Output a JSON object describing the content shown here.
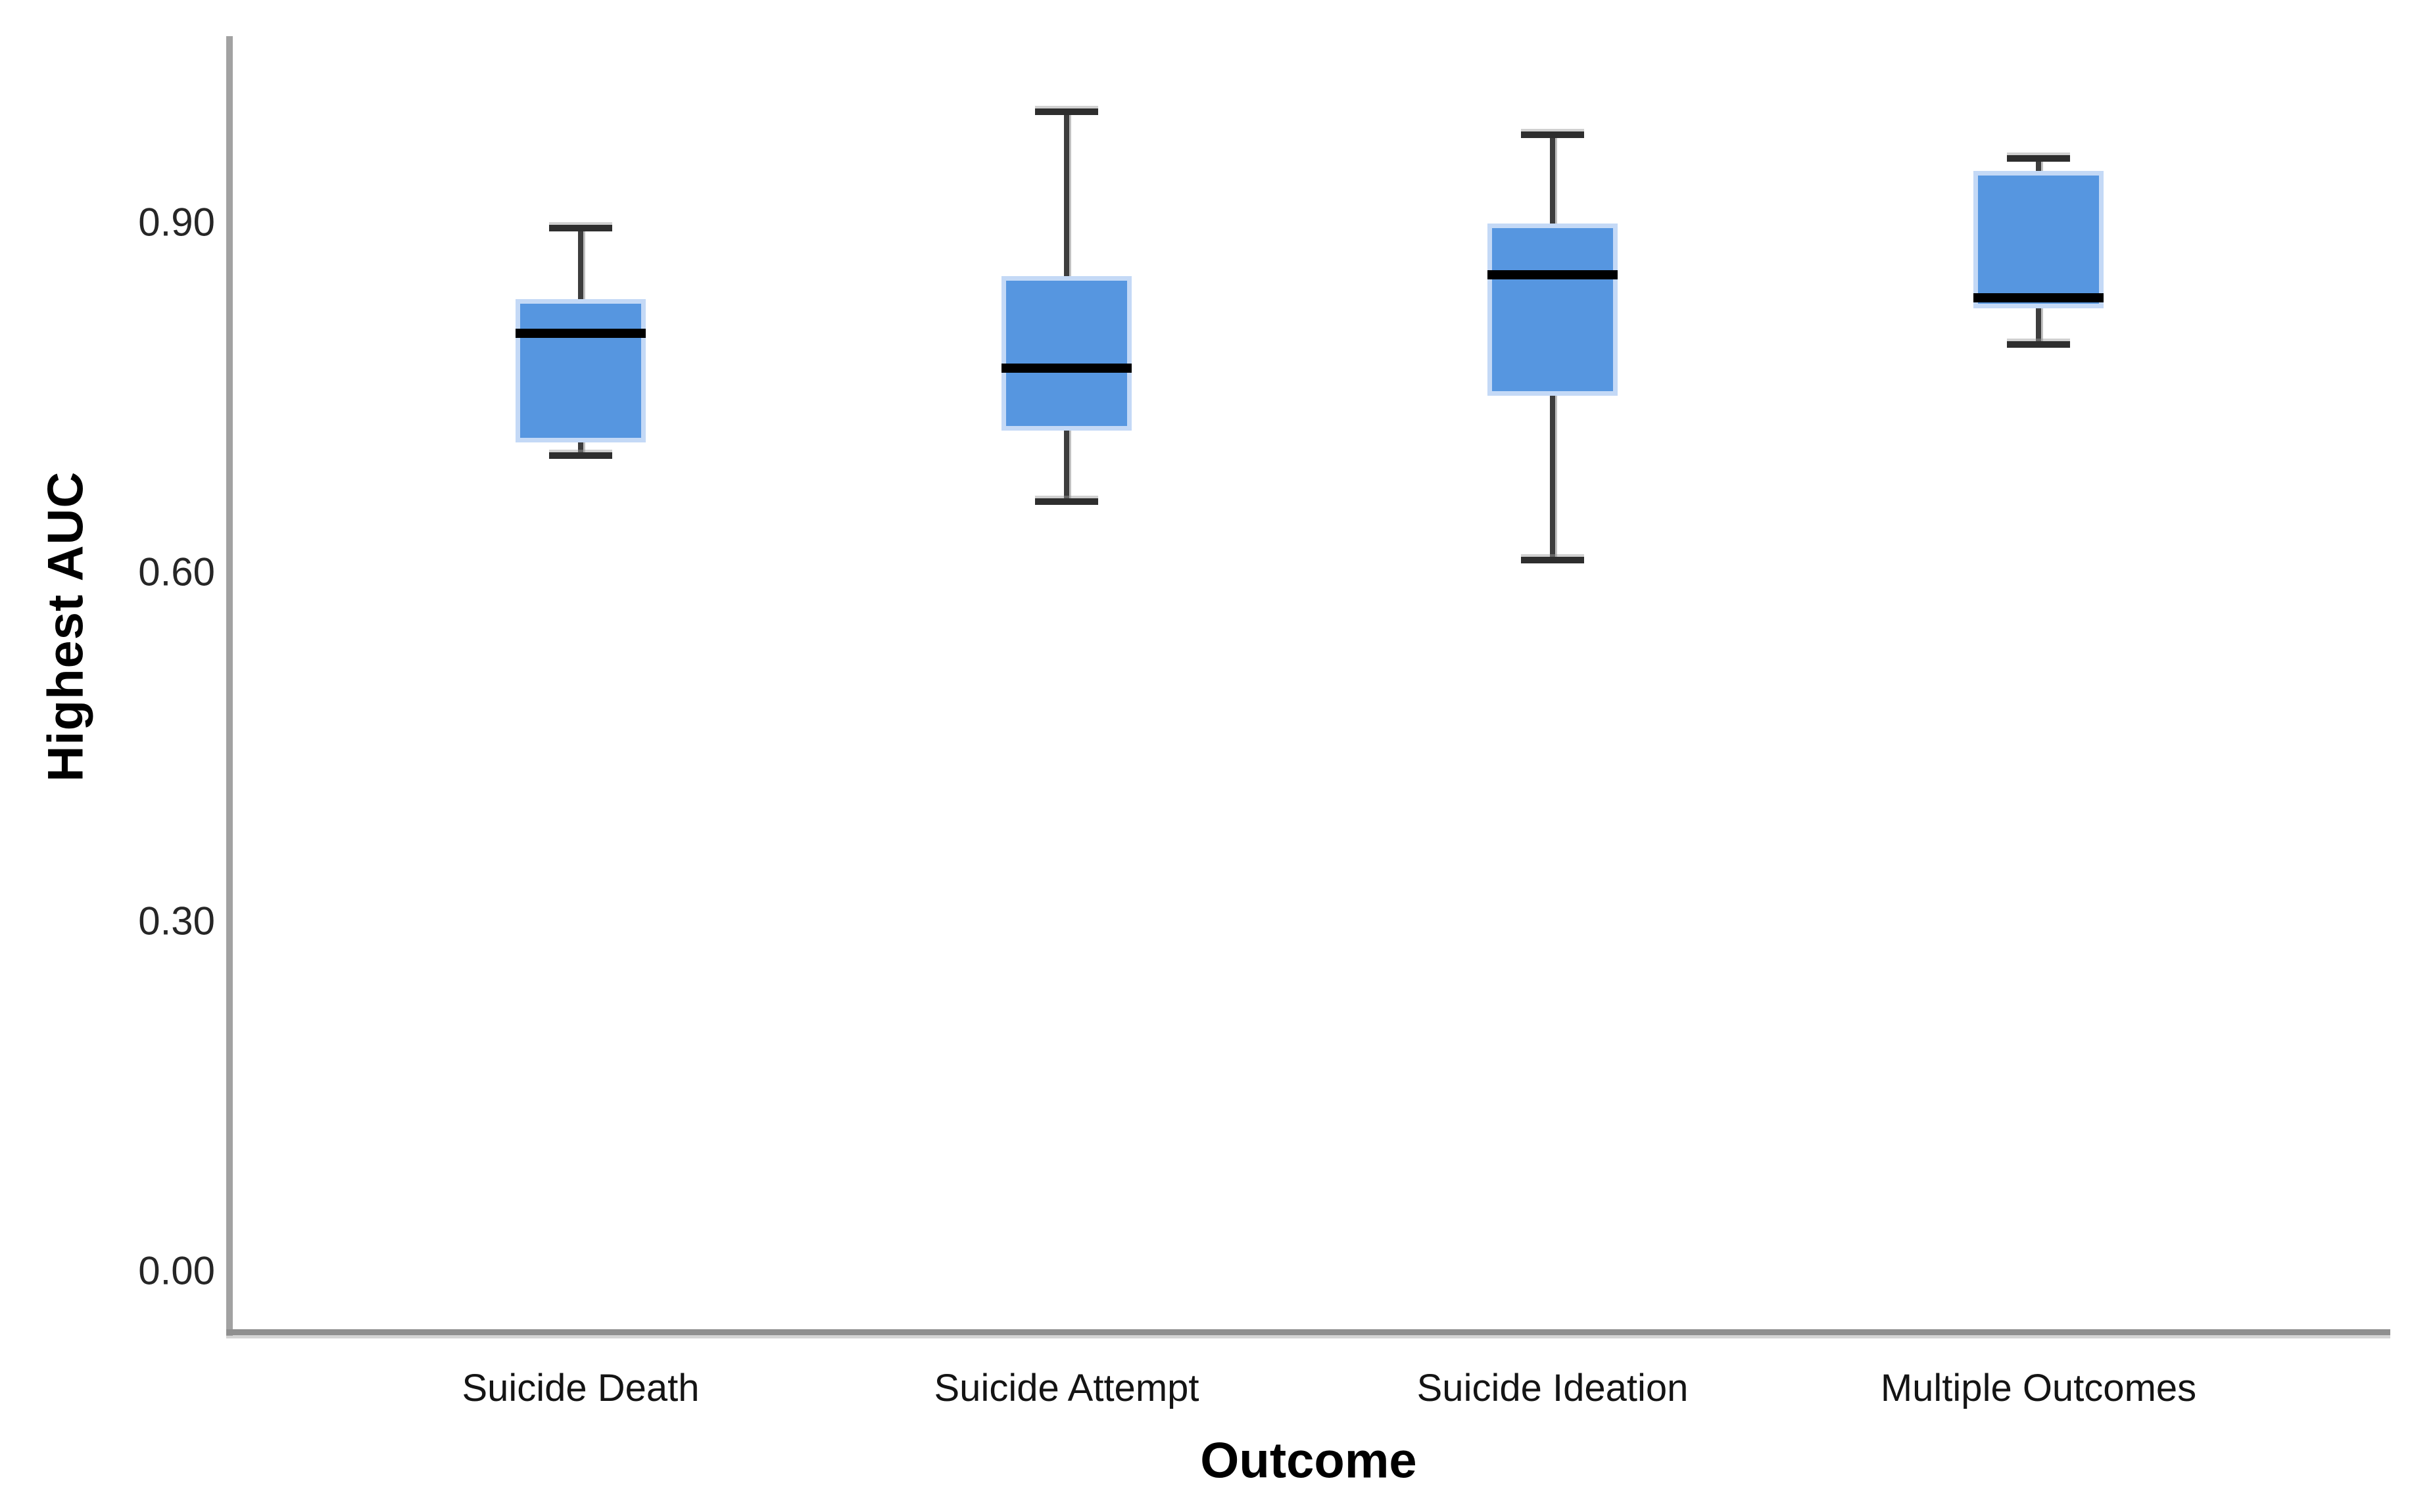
{
  "y_axis": {
    "label": "Highest AUC",
    "tick_labels": [
      "0.90",
      "0.60",
      "0.30",
      "0.00"
    ]
  },
  "x_axis": {
    "label": "Outcome",
    "categories": [
      "Suicide Death",
      "Suicide Attempt",
      "Suicide Ideation",
      "Multiple Outcomes"
    ]
  },
  "chart_data": {
    "type": "boxplot",
    "title": "",
    "xlabel": "Outcome",
    "ylabel": "Highest AUC",
    "categories": [
      "Suicide Death",
      "Suicide Attempt",
      "Suicide Ideation",
      "Multiple Outcomes"
    ],
    "yticks": [
      {
        "label": "0.90",
        "value": 0.9
      },
      {
        "label": "0.60",
        "value": 0.6
      },
      {
        "label": "0.30",
        "value": 0.3
      },
      {
        "label": "0.00",
        "value": 0.0
      }
    ],
    "ylim": [
      -0.05,
      1.05
    ],
    "grid": false,
    "legend": "none",
    "boxes": [
      {
        "category": "Suicide Death",
        "whisker_low": 0.7,
        "q1": 0.715,
        "median": 0.805,
        "q3": 0.83,
        "whisker_high": 0.895
      },
      {
        "category": "Suicide Attempt",
        "whisker_low": 0.66,
        "q1": 0.725,
        "median": 0.775,
        "q3": 0.85,
        "whisker_high": 0.995
      },
      {
        "category": "Suicide Ideation",
        "whisker_low": 0.61,
        "q1": 0.755,
        "median": 0.855,
        "q3": 0.895,
        "whisker_high": 0.975
      },
      {
        "category": "Multiple Outcomes",
        "whisker_low": 0.795,
        "q1": 0.83,
        "median": 0.835,
        "q3": 0.94,
        "whisker_high": 0.955
      }
    ],
    "colors": {
      "box_fill": "#5696E0",
      "box_edge": "#C4D9F6",
      "median": "#000000",
      "whisker": "#3D3D3D",
      "whisker_cap": "#2E2E2E",
      "axis_line": "#A2A2A2",
      "tick_text": "#262626",
      "title_text": "#000000"
    }
  }
}
